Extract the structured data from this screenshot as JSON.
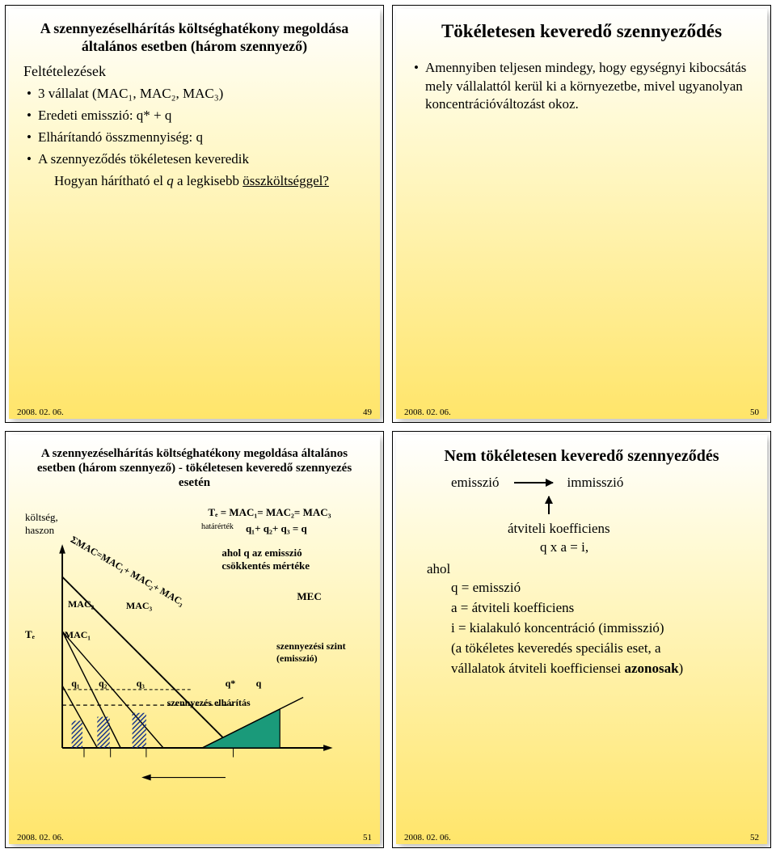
{
  "slide1": {
    "title": "A szennyezéselhárítás költséghatékony megoldása általános esetben (három szennyező)",
    "subhead": "Feltételezések",
    "bullets": [
      "3 vállalat (MAC₁, MAC₂, MAC₃)",
      "Eredeti emisszió: q* + q",
      "Elhárítandó összmennyiség: q",
      "A szennyeződés tökéletesen keveredik"
    ],
    "indent1": "Hogyan hárítható el q a legkisebb",
    "indent2": "összköltséggel?",
    "date": "2008. 02. 06.",
    "page": "49"
  },
  "slide2": {
    "title": "Tökéletesen keveredő szennyeződés",
    "bullet": "Amennyiben teljesen mindegy, hogy egységnyi kibocsátás mely vállalattól kerül ki a környezetbe, mivel ugyanolyan koncentrációváltozást okoz.",
    "date": "2008. 02. 06.",
    "page": "50"
  },
  "slide3": {
    "title": "A szennyezéselhárítás költséghatékony megoldása általános esetben (három szennyező) - tökéletesen keveredő szennyezés esetén",
    "labels": {
      "yaxis1": "költség,",
      "yaxis2": "haszon",
      "te": "Tₑ",
      "teq": "Tₑ =",
      "eq_right": "MAC₁= MAC₂= MAC₃",
      "hat": "határérték",
      "qsum": "q₁+ q₂+ q₃ = q",
      "meaning1": "ahol q az emisszió",
      "meaning2": "csökkentés mértéke",
      "mec": "MEC",
      "szint": "szennyezési szint",
      "emisszio": "(emisszió)",
      "elharitas": "szennyezés elhárítás",
      "sum_mac": "ΣMAC=MAC₁+ MAC₂+ MAC₃",
      "mac2": "MAC₂",
      "mac1_low": "MAC₁",
      "mac3": "MAC₃",
      "q1": "q₁",
      "q2": "q₂",
      "q3": "q₃",
      "qstar": "q*",
      "q": "q"
    },
    "colors": {
      "bg": "#ffffff",
      "line": "#000000",
      "hatch": "#0a2a8a",
      "mec_fill": "#1a9a7a",
      "mec_stroke": "#000000"
    },
    "date": "2008. 02. 06.",
    "page": "51"
  },
  "slide4": {
    "title": "Nem tökéletesen keveredő szennyeződés",
    "emisszio": "emisszió",
    "immisszio": "immisszió",
    "atvitel": "átviteli koefficiens",
    "formula": "q x a = i,",
    "ahol": "ahol",
    "defs": [
      "q = emisszió",
      "a = átviteli koefficiens",
      "i = kialakuló koncentráció (immisszió)",
      "(a tökéletes keveredés speciális eset, a",
      "vállalatok átviteli koefficiensei azonosak)"
    ],
    "date": "2008. 02. 06.",
    "page": "52"
  }
}
